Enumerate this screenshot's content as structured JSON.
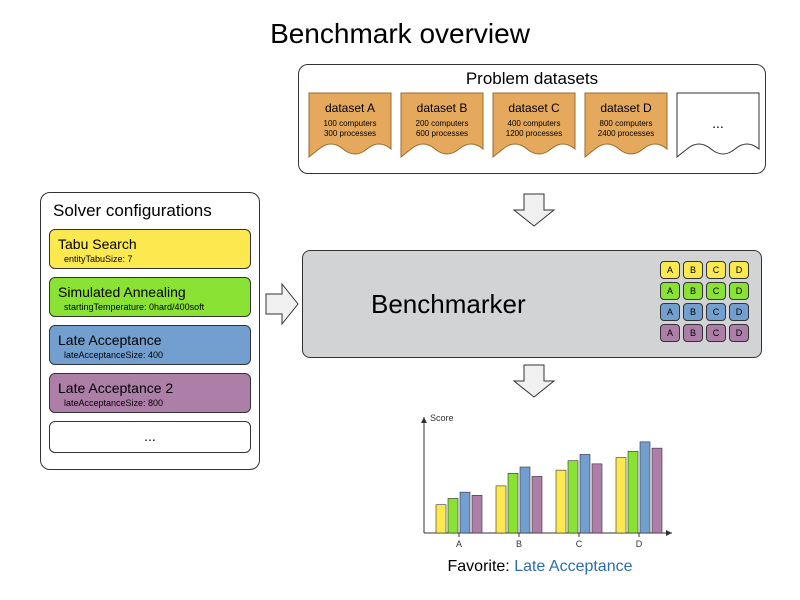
{
  "title": "Benchmark overview",
  "colors": {
    "tabu": "#fce94f",
    "sa": "#8ae234",
    "la": "#729fcf",
    "la2": "#ad7fa8",
    "dataset_fill": "#e5a95e",
    "dataset_stroke": "#9a6a2f",
    "benchmarker_bg": "#d1d3d4",
    "arrow_fill": "#f0f0f0"
  },
  "solvers": {
    "title": "Solver configurations",
    "items": [
      {
        "name": "Tabu Search",
        "detail": "entityTabuSize: 7",
        "color": "#fce94f"
      },
      {
        "name": "Simulated Annealing",
        "detail": "startingTemperature: 0hard/400soft",
        "color": "#8ae234"
      },
      {
        "name": "Late Acceptance",
        "detail": "lateAcceptanceSize: 400",
        "color": "#729fcf"
      },
      {
        "name": "Late Acceptance 2",
        "detail": "lateAcceptanceSize: 800",
        "color": "#ad7fa8"
      }
    ],
    "ellipsis": "..."
  },
  "datasets": {
    "title": "Problem datasets",
    "items": [
      {
        "name": "dataset A",
        "line1": "100 computers",
        "line2": "300 processes"
      },
      {
        "name": "dataset B",
        "line1": "200 computers",
        "line2": "600 processes"
      },
      {
        "name": "dataset C",
        "line1": "400 computers",
        "line2": "1200 processes"
      },
      {
        "name": "dataset D",
        "line1": "800 computers",
        "line2": "2400 processes"
      }
    ],
    "ellipsis": "..."
  },
  "benchmarker": {
    "label": "Benchmarker",
    "grid_cols": [
      "A",
      "B",
      "C",
      "D"
    ],
    "grid_row_colors": [
      "#fce94f",
      "#8ae234",
      "#729fcf",
      "#ad7fa8"
    ]
  },
  "chart": {
    "ylabel": "Score",
    "categories": [
      "A",
      "B",
      "C",
      "D"
    ],
    "series_colors": [
      "#fce94f",
      "#8ae234",
      "#729fcf",
      "#ad7fa8"
    ],
    "data": [
      [
        18,
        30,
        40,
        48
      ],
      [
        22,
        38,
        46,
        52
      ],
      [
        26,
        42,
        50,
        58
      ],
      [
        24,
        36,
        44,
        54
      ]
    ],
    "xlim": [
      0,
      260
    ],
    "ylim": [
      0,
      70
    ],
    "axis_color": "#333333",
    "label_fontsize": 9
  },
  "favorite": {
    "prefix": "Favorite: ",
    "name": "Late Acceptance"
  }
}
